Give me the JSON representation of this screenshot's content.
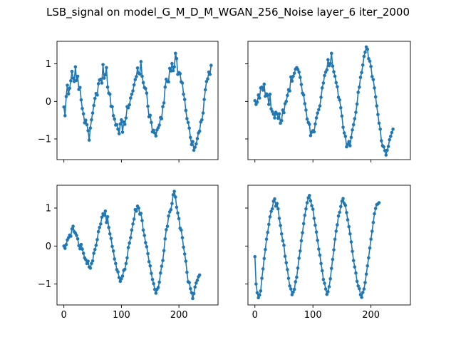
{
  "chart_data": {
    "title": "LSB_signal on model_G_M_D_M_WGAN_256_Noise layer_6 iter_2000",
    "type": "line",
    "layout": "2x2 grid, shared x and y axes",
    "marker": "filled circle",
    "line_color": "#1f77b4",
    "xlim": [
      -12,
      268
    ],
    "ylim": [
      -1.55,
      1.6
    ],
    "xticks": [
      0,
      100,
      200
    ],
    "xtick_labels": [
      "0",
      "100",
      "200"
    ],
    "yticks": [
      -1,
      0,
      1
    ],
    "ytick_labels": [
      "−1",
      "0",
      "1"
    ],
    "x_step": 2,
    "panels": [
      {
        "x_labels_shown": false,
        "y_labels_shown": true,
        "y": [
          -0.15,
          -0.38,
          0.13,
          0.43,
          0.2,
          0.35,
          0.55,
          0.8,
          0.62,
          0.53,
          0.92,
          0.56,
          0.67,
          0.32,
          0.37,
          0.04,
          -0.19,
          -0.33,
          -0.57,
          -0.5,
          -0.62,
          -0.78,
          -1.03,
          -0.71,
          -0.49,
          -0.31,
          -0.11,
          0.08,
          0.21,
          0.17,
          0.47,
          0.57,
          0.59,
          0.49,
          0.98,
          0.62,
          0.71,
          0.9,
          0.38,
          0.22,
          0.19,
          -0.13,
          -0.14,
          -0.38,
          -0.47,
          -0.63,
          -0.62,
          -0.74,
          -0.86,
          -0.6,
          -0.49,
          -0.82,
          -0.55,
          -0.61,
          -0.44,
          -0.14,
          -0.17,
          -0.09,
          0.09,
          0.19,
          0.28,
          0.44,
          0.58,
          0.66,
          0.89,
          0.75,
          0.73,
          1.06,
          0.67,
          0.5,
          0.37,
          0.34,
          0.22,
          -0.13,
          -0.41,
          -0.37,
          -0.56,
          -0.81,
          -0.77,
          -0.84,
          -0.92,
          -0.76,
          -0.7,
          -0.63,
          -0.43,
          -0.46,
          -0.14,
          -0.04,
          0.38,
          0.59,
          0.53,
          0.52,
          0.88,
          0.81,
          1.01,
          0.82,
          0.92,
          1.28,
          1.14,
          0.72,
          0.77,
          0.74,
          0.52,
          0.49,
          0.19,
          0.05,
          -0.24,
          -0.46,
          -0.56,
          -0.71,
          -0.96,
          -1.15,
          -1.07,
          -1.3,
          -1.22,
          -1.13,
          -0.99,
          -0.84,
          -0.79,
          -0.55,
          -0.49,
          -0.31,
          0.05,
          0.31,
          0.53,
          0.6,
          0.78,
          0.72,
          0.96
        ]
      },
      {
        "x_labels_shown": false,
        "y_labels_shown": false,
        "y": [
          0.02,
          -0.08,
          -0.02,
          0.17,
          0.09,
          0.36,
          0.38,
          0.3,
          0.46,
          0.14,
          0.2,
          0.16,
          -0.08,
          0.19,
          -0.2,
          -0.27,
          -0.34,
          -0.44,
          -0.29,
          -0.33,
          -0.45,
          -0.33,
          -0.58,
          -0.51,
          -0.23,
          -0.3,
          -0.06,
          0.0,
          0.16,
          0.31,
          0.28,
          0.65,
          0.54,
          0.67,
          0.75,
          0.86,
          0.9,
          0.85,
          0.78,
          0.64,
          0.45,
          0.22,
          0.17,
          -0.06,
          -0.23,
          -0.47,
          -0.56,
          -0.61,
          -0.91,
          -0.82,
          -0.78,
          -0.81,
          -0.6,
          -0.44,
          -0.31,
          -0.22,
          -0.12,
          0.11,
          0.36,
          0.49,
          0.69,
          0.78,
          0.84,
          1.11,
          0.95,
          1.01,
          1.28,
          0.94,
          0.79,
          0.67,
          0.5,
          0.39,
          0.11,
          0.04,
          -0.17,
          -0.39,
          -0.69,
          -0.84,
          -0.93,
          -1.21,
          -1.14,
          -1.07,
          -1.18,
          -0.96,
          -0.76,
          -0.62,
          -0.46,
          -0.29,
          -0.07,
          0.24,
          0.38,
          0.64,
          0.77,
          0.97,
          1.2,
          1.31,
          1.45,
          1.39,
          1.14,
          1.07,
          0.93,
          0.66,
          0.58,
          0.36,
          0.12,
          -0.12,
          -0.35,
          -0.58,
          -0.74,
          -1.05,
          -1.18,
          -1.21,
          -1.31,
          -1.43,
          -1.3,
          -1.2,
          -1.02,
          -0.93,
          -0.83,
          -0.74
        ]
      },
      {
        "x_labels_shown": true,
        "y_labels_shown": true,
        "y": [
          0.0,
          -0.06,
          0.04,
          0.16,
          0.22,
          0.29,
          0.26,
          0.45,
          0.52,
          0.38,
          0.34,
          0.28,
          0.19,
          0.01,
          -0.07,
          0.04,
          -0.08,
          -0.19,
          -0.31,
          -0.36,
          -0.46,
          -0.4,
          -0.55,
          -0.58,
          -0.46,
          -0.39,
          -0.19,
          -0.09,
          0.02,
          0.17,
          0.38,
          0.49,
          0.58,
          0.76,
          0.85,
          0.81,
          0.92,
          0.62,
          0.77,
          0.49,
          0.32,
          0.2,
          -0.01,
          -0.13,
          -0.34,
          -0.46,
          -0.62,
          -0.68,
          -0.83,
          -0.93,
          -0.86,
          -0.79,
          -0.64,
          -0.61,
          -0.46,
          -0.31,
          -0.04,
          0.08,
          0.22,
          0.42,
          0.58,
          0.71,
          0.96,
          0.92,
          1.05,
          1.0,
          0.84,
          0.86,
          0.67,
          0.42,
          0.28,
          0.09,
          -0.02,
          -0.2,
          -0.41,
          -0.52,
          -0.72,
          -0.88,
          -0.99,
          -1.14,
          -1.24,
          -1.14,
          -1.09,
          -0.95,
          -0.71,
          -0.53,
          -0.38,
          -0.12,
          0.19,
          0.43,
          0.52,
          0.79,
          0.9,
          0.96,
          1.12,
          1.35,
          1.44,
          1.29,
          1.02,
          0.87,
          0.72,
          0.47,
          0.42,
          0.22,
          -0.03,
          -0.21,
          -0.4,
          -0.69,
          -0.94,
          -0.96,
          -1.12,
          -1.23,
          -1.38,
          -1.25,
          -1.08,
          -0.97,
          -0.9,
          -0.81,
          -0.76
        ]
      },
      {
        "x_labels_shown": true,
        "y_labels_shown": false,
        "y": [
          -0.28,
          -1.0,
          -1.23,
          -1.36,
          -1.29,
          -1.18,
          -0.85,
          -0.6,
          -0.33,
          -0.09,
          0.18,
          0.36,
          0.57,
          0.77,
          0.91,
          0.98,
          1.18,
          1.24,
          1.05,
          1.12,
          0.98,
          0.73,
          0.54,
          0.32,
          0.14,
          0.02,
          -0.27,
          -0.44,
          -0.62,
          -0.85,
          -1.05,
          -1.13,
          -1.28,
          -1.21,
          -1.14,
          -0.94,
          -0.82,
          -0.58,
          -0.32,
          -0.13,
          0.14,
          0.35,
          0.59,
          0.81,
          0.98,
          1.14,
          1.27,
          1.33,
          1.19,
          1.06,
          0.97,
          0.73,
          0.55,
          0.37,
          0.15,
          -0.08,
          -0.24,
          -0.46,
          -0.65,
          -0.88,
          -0.98,
          -1.13,
          -1.27,
          -1.2,
          -1.07,
          -0.86,
          -0.59,
          -0.35,
          -0.1,
          0.18,
          0.39,
          0.56,
          0.79,
          0.89,
          1.04,
          1.18,
          1.25,
          1.12,
          1.07,
          0.88,
          0.69,
          0.51,
          0.32,
          0.11,
          -0.14,
          -0.38,
          -0.55,
          -0.71,
          -0.93,
          -1.05,
          -1.12,
          -1.28,
          -1.35,
          -1.22,
          -1.13,
          -0.96,
          -0.74,
          -0.52,
          -0.31,
          -0.05,
          0.18,
          0.39,
          0.62,
          0.85,
          0.99,
          1.09,
          1.11,
          1.14
        ]
      }
    ]
  }
}
